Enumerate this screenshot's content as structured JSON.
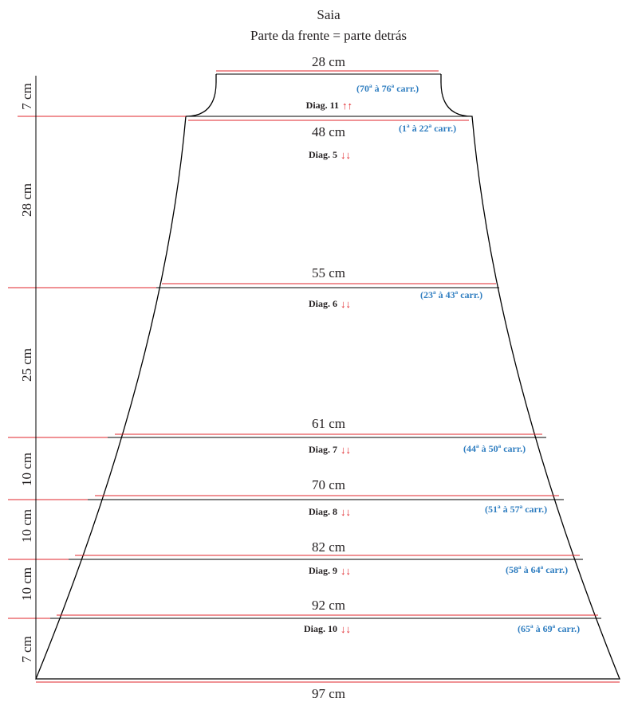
{
  "title": "Saia",
  "subtitle": "Parte da frente = parte detrás",
  "widths": [
    "28 cm",
    "48 cm",
    "55 cm",
    "61 cm",
    "70 cm",
    "82 cm",
    "92 cm",
    "97 cm"
  ],
  "heights": [
    "7 cm",
    "28 cm",
    "25 cm",
    "10 cm",
    "10 cm",
    "10 cm",
    "7 cm"
  ],
  "sections": [
    {
      "diagram": "Diag. 11",
      "arrows": "↑↑",
      "rows": "(70ª à 76ª carr.)"
    },
    {
      "diagram": "Diag. 5",
      "arrows": "↓↓",
      "rows": "(1ª à 22ª carr.)"
    },
    {
      "diagram": "Diag. 6",
      "arrows": "↓↓",
      "rows": "(23ª à 43ª carr.)"
    },
    {
      "diagram": "Diag. 7",
      "arrows": "↓↓",
      "rows": "(44ª à 50ª carr.)"
    },
    {
      "diagram": "Diag. 8",
      "arrows": "↓↓",
      "rows": "(51ª à 57ª carr.)"
    },
    {
      "diagram": "Diag. 9",
      "arrows": "↓↓",
      "rows": "(58ª à 64ª carr.)"
    },
    {
      "diagram": "Diag. 10",
      "arrows": "↓↓",
      "rows": "(65ª à 69ª carr.)"
    }
  ],
  "colors": {
    "outline": "#000000",
    "measure_line": "#e0262b",
    "arrow": "#e0262b",
    "row_note": "#2e7dc0",
    "text": "#231f20"
  }
}
